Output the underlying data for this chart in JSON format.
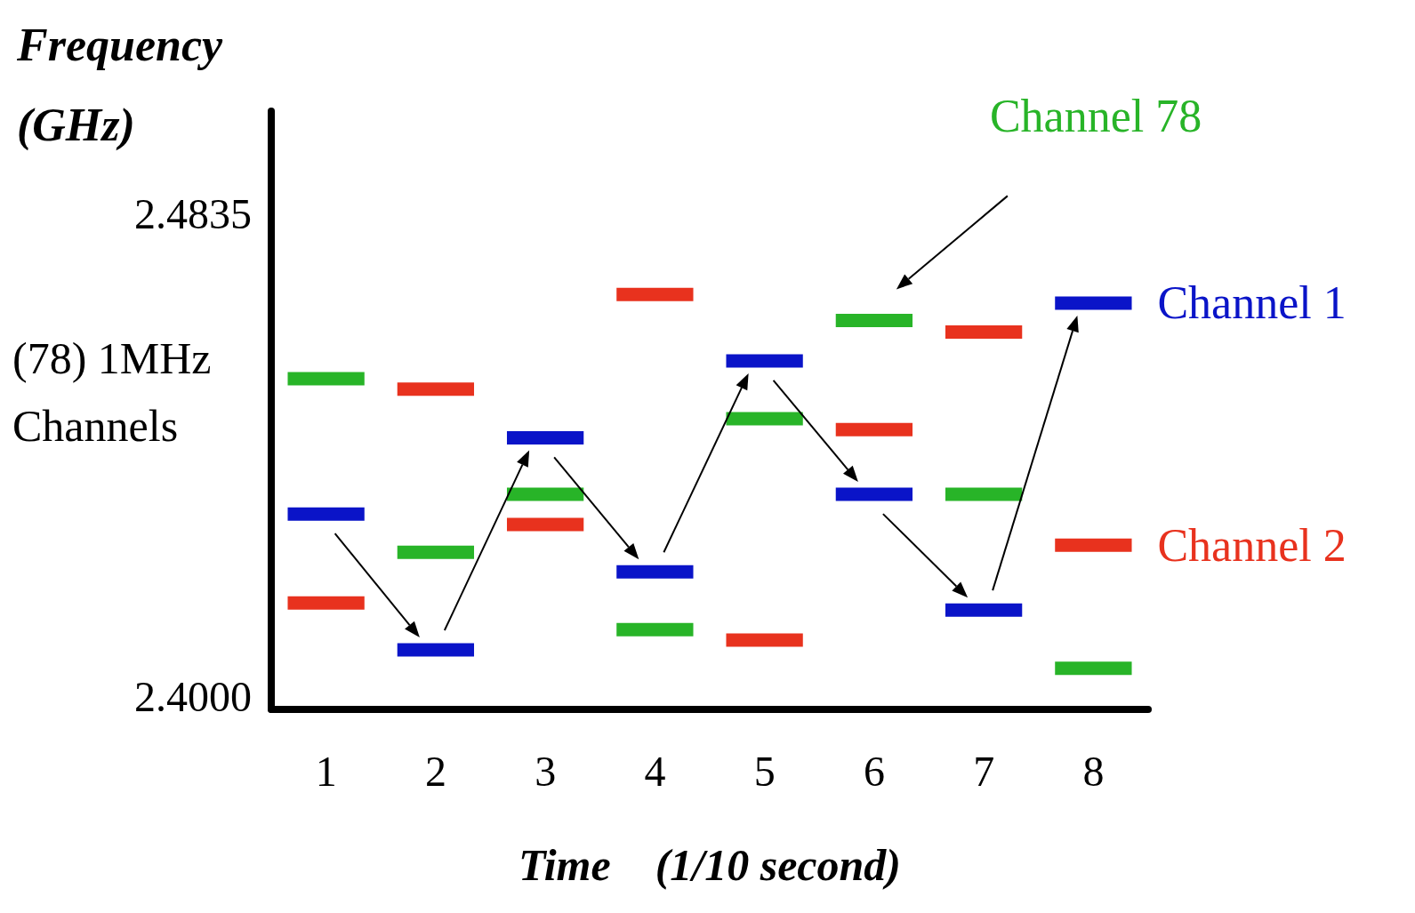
{
  "chart_data": {
    "type": "line",
    "ylabel": "Frequency (GHz)",
    "xlabel": "Time    (1/10 second)",
    "annotations": [
      "(78) 1MHz Channels"
    ],
    "x": [
      0.65,
      1.35,
      null,
      1.65,
      2.35,
      null,
      2.65,
      3.35,
      null,
      3.65,
      4.35,
      null,
      4.65,
      5.35,
      null,
      5.65,
      6.35,
      null,
      6.65,
      7.35,
      null,
      7.65,
      8.35
    ],
    "xlim": [
      0.5,
      8.5
    ],
    "xticks": [
      1,
      2,
      3,
      4,
      5,
      6,
      7,
      8
    ],
    "ylim": [
      2.3977,
      2.5012
    ],
    "yticks": [
      {
        "value": 2.4,
        "label": "2.4000"
      },
      {
        "value": 2.4835,
        "label": "2.4835"
      }
    ],
    "grid": false,
    "legend": "right",
    "series": [
      {
        "name": "Channel 1",
        "color": "#0a14c8",
        "values": [
          2.4315,
          2.4315,
          null,
          2.408,
          2.408,
          null,
          2.4447,
          2.4447,
          null,
          2.4215,
          2.4215,
          null,
          2.458,
          2.458,
          null,
          2.4349,
          2.4349,
          null,
          2.4149,
          2.4149,
          null,
          2.468,
          2.468
        ]
      },
      {
        "name": "Channel 2",
        "color": "#e8321e",
        "values": [
          2.4161,
          2.4161,
          null,
          2.4531,
          2.4531,
          null,
          2.4297,
          2.4297,
          null,
          2.4695,
          2.4695,
          null,
          2.4097,
          2.4097,
          null,
          2.4461,
          2.4461,
          null,
          2.463,
          2.463,
          null,
          2.4261,
          2.4261
        ]
      },
      {
        "name": "Channel 78",
        "color": "#28b428",
        "values": [
          2.4549,
          2.4549,
          null,
          2.4249,
          2.4249,
          null,
          2.4349,
          2.4349,
          null,
          2.4115,
          2.4115,
          null,
          2.448,
          2.448,
          null,
          2.465,
          2.465,
          null,
          2.4349,
          2.4349,
          null,
          2.4048,
          2.4048
        ]
      }
    ]
  }
}
